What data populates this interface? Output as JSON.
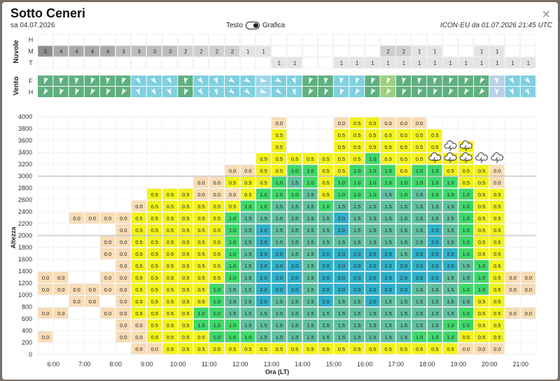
{
  "header": {
    "title": "Sotto Ceneri",
    "date": "sa 04.07.2026",
    "toggle_left": "Testo",
    "toggle_right": "Grafica",
    "model_info": "ICON-EU da 01.07.2026 21:45 UTC",
    "close_icon": "close-icon"
  },
  "clouds": {
    "label": "Nuvole",
    "rows": [
      "H",
      "M",
      "T"
    ],
    "H": [
      "",
      "",
      "",
      "",
      "",
      "",
      "",
      "",
      "",
      "",
      "",
      "",
      "",
      "",
      "",
      "",
      "",
      "",
      "",
      "",
      "",
      "",
      "",
      "",
      "",
      "",
      "",
      "",
      "",
      "",
      "",
      ""
    ],
    "M": [
      "5",
      "4",
      "4",
      "4",
      "4",
      "3",
      "3",
      "3",
      "3",
      "2",
      "2",
      "2",
      "2",
      "1",
      "1",
      "",
      "",
      "",
      "",
      "",
      "",
      "",
      "2",
      "2",
      "1",
      "1",
      "",
      "",
      "1",
      "1",
      "",
      "",
      "1",
      "1"
    ],
    "T": [
      "",
      "",
      "",
      "",
      "",
      "",
      "",
      "",
      "",
      "",
      "",
      "",
      "",
      "",
      "",
      "1",
      "1",
      "",
      "",
      "1",
      "1",
      "1",
      "1",
      "1",
      "1",
      "1",
      "1",
      "1",
      "1",
      "1",
      "1",
      "1",
      "1",
      "1"
    ]
  },
  "wind": {
    "label": "Vento",
    "rows": [
      "F",
      "H"
    ]
  },
  "chart_data": {
    "type": "heatmap",
    "ylabel": "Altezza",
    "xlabel": "Ora (LT)",
    "yticks": [
      0,
      200,
      400,
      600,
      800,
      1000,
      1200,
      1400,
      1600,
      1800,
      2000,
      2200,
      2400,
      2600,
      2800,
      3000,
      3200,
      3400,
      3600,
      3800,
      4000
    ],
    "xticks": [
      "6:00",
      "7:00",
      "8:00",
      "9:00",
      "10:00",
      "11:00",
      "12:00",
      "13:00",
      "14:00",
      "15:00",
      "16:00",
      "17:00",
      "18:00",
      "19:00",
      "20:00",
      "21:00"
    ],
    "columns": [
      {
        "base": 1,
        "values": [
          "0.0",
          "",
          "0.0",
          "",
          "0.0",
          "0.0"
        ]
      },
      {
        "base": 3,
        "values": [
          "0.0",
          "",
          "0.0",
          "0.0"
        ]
      },
      {
        "base": 4,
        "values": [
          "0.0",
          "0.0",
          "",
          "",
          "",
          "",
          "",
          "0.0"
        ]
      },
      {
        "base": 4,
        "values": [
          "0.0",
          "0.0",
          "",
          "",
          "",
          "",
          "",
          "0.0"
        ]
      },
      {
        "base": 3,
        "values": [
          "0.0",
          "",
          "0.0",
          "0.0",
          "",
          "0.0",
          "0.0",
          "",
          "0.0"
        ]
      },
      {
        "base": 1,
        "values": [
          "0.0",
          "0.0",
          "0.0",
          "0.0",
          "0.0",
          "0.0",
          "0.0",
          "0.0",
          "0.0",
          "0.0",
          "0.0"
        ]
      },
      {
        "base": 0,
        "values": [
          "0.0",
          "0.0",
          "0.0",
          "0.5",
          "0.5",
          "0.5",
          "0.5",
          "0.5",
          "0.5",
          "0.5",
          "0.5",
          "0.5",
          "0.0"
        ]
      },
      {
        "base": 0,
        "values": [
          "0.0",
          "0.5",
          "0.5",
          "0.5",
          "0.5",
          "0.5",
          "0.5",
          "0.5",
          "0.5",
          "0.5",
          "0.5",
          "0.5",
          "0.5",
          "0.5"
        ]
      },
      {
        "base": 0,
        "values": [
          "0.5",
          "0.5",
          "0.5",
          "0.5",
          "0.5",
          "0.5",
          "0.5",
          "0.5",
          "0.5",
          "0.5",
          "0.5",
          "0.5",
          "0.5",
          "0.5"
        ]
      },
      {
        "base": 0,
        "values": [
          "0.5",
          "0.5",
          "0.5",
          "0.5",
          "0.5",
          "0.5",
          "0.5",
          "0.5",
          "0.5",
          "0.5",
          "0.5",
          "0.5",
          "0.5",
          "0.5"
        ]
      },
      {
        "base": 0,
        "values": [
          "0.5",
          "0.5",
          "1.0",
          "1.0",
          "0.5",
          "0.5",
          "0.5",
          "0.5",
          "0.5",
          "0.5",
          "0.5",
          "0.5",
          "0.5",
          "0.0",
          "0.0"
        ]
      },
      {
        "base": 0,
        "values": [
          "0.5",
          "1.0",
          "1.0",
          "1.0",
          "1.0",
          "1.0",
          "0.5",
          "0.5",
          "0.5",
          "0.5",
          "0.5",
          "0.5",
          "0.5",
          "0.0",
          "0.0"
        ]
      },
      {
        "base": 0,
        "values": [
          "0.5",
          "1.0",
          "1.0",
          "1.5",
          "1.5",
          "1.5",
          "1.0",
          "1.0",
          "1.0",
          "1.0",
          "1.0",
          "1.0",
          "0.5",
          "0.0",
          "0.5",
          "0.0"
        ]
      },
      {
        "base": 0,
        "values": [
          "0.5",
          "1.0",
          "1.5",
          "1.5",
          "1.5",
          "1.5",
          "1.5",
          "1.5",
          "1.5",
          "1.5",
          "1.5",
          "1.5",
          "1.0",
          "0.5",
          "0.5",
          "0.0"
        ]
      },
      {
        "base": 0,
        "values": [
          "0.5",
          "1.5",
          "1.5",
          "1.5",
          "2.0",
          "2.0",
          "2.0",
          "2.0",
          "2.0",
          "2.0",
          "2.0",
          "1.5",
          "1.0",
          "1.0",
          "0.5",
          "0.5",
          "0.5"
        ]
      },
      {
        "base": 0,
        "values": [
          "0.5",
          "1.5",
          "1.5",
          "1.5",
          "1.5",
          "2.0",
          "2.0",
          "2.0",
          "2.0",
          "1.5",
          "1.5",
          "1.5",
          "1.5",
          "1.0",
          "1.0",
          "0.5",
          "0.5",
          "0.5",
          "0.5",
          "0.0"
        ]
      },
      {
        "base": 0,
        "values": [
          "0.5",
          "1.5",
          "1.5",
          "1.5",
          "1.5",
          "2.0",
          "2.0",
          "2.0",
          "1.5",
          "1.5",
          "1.5",
          "1.5",
          "1.5",
          "1.0",
          "1.5",
          "1.0",
          "0.5"
        ]
      },
      {
        "base": 0,
        "values": [
          "0.5",
          "1.5",
          "1.5",
          "1.5",
          "1.5",
          "1.5",
          "1.5",
          "1.5",
          "1.5",
          "1.5",
          "1.5",
          "1.5",
          "1.5",
          "1.5",
          "1.0",
          "1.0",
          "0.5"
        ]
      },
      {
        "base": 0,
        "values": [
          "0.5",
          "1.5",
          "1.5",
          "1.5",
          "2.0",
          "2.0",
          "2.0",
          "2.0",
          "2.0",
          "1.5",
          "1.5",
          "1.5",
          "1.0",
          "0.5",
          "0.5",
          "0.5",
          "0.5"
        ]
      },
      {
        "base": 0,
        "values": [
          "0.5",
          "1.5",
          "1.5",
          "1.5",
          "1.5",
          "2.0",
          "2.0",
          "2.0",
          "2.0",
          "1.5",
          "2.0",
          "2.0",
          "1.5",
          "1.0",
          "1.0",
          "0.5",
          "0.5",
          "0.5",
          "0.5",
          "0.0"
        ]
      },
      {
        "base": 0,
        "values": [
          "0.5",
          "1.5",
          "1.5",
          "1.5",
          "1.5",
          "2.0",
          "2.0",
          "2.0",
          "2.0",
          "1.5",
          "1.5",
          "1.5",
          "1.5",
          "1.0",
          "1.0",
          "1.0",
          "0.5",
          "0.5",
          "0.5",
          "0.5"
        ]
      },
      {
        "base": 0,
        "values": [
          "0.5",
          "1.5",
          "1.5",
          "1.5",
          "2.0",
          "2.0",
          "2.0",
          "2.0",
          "2.0",
          "1.5",
          "1.5",
          "1.5",
          "1.5",
          "1.0",
          "1.0",
          "1.0",
          "1.0",
          "0.5",
          "0.5",
          "0.5"
        ]
      },
      {
        "base": 0,
        "values": [
          "0.5",
          "1.5",
          "1.5",
          "1.5",
          "1.5",
          "2.0",
          "2.0",
          "2.0",
          "2.0",
          "1.5",
          "1.5",
          "1.5",
          "1.5",
          "1.5",
          "1.0",
          "1.0",
          "0.5",
          "0.5",
          "0.5",
          "0.0"
        ]
      },
      {
        "base": 0,
        "values": [
          "0.5",
          "1.5",
          "1.5",
          "1.5",
          "1.5",
          "2.0",
          "2.0",
          "2.0",
          "1.5",
          "1.5",
          "1.5",
          "1.5",
          "1.5",
          "1.0",
          "1.0",
          "0.5",
          "0.5",
          "0.5",
          "0.5",
          "0.0"
        ]
      },
      {
        "base": 0,
        "values": [
          "0.5",
          "1.0",
          "1.5",
          "1.5",
          "1.5",
          "1.5",
          "2.0",
          "2.0",
          "2.0",
          "1.5",
          "1.5",
          "1.5",
          "1.5",
          "1.5",
          "1.0",
          "1.0",
          "0.5",
          "0.5",
          "0.5",
          "0.0"
        ]
      },
      {
        "base": 0,
        "values": [
          "0.5",
          "1.0",
          "1.5",
          "1.5",
          "1.5",
          "1.5",
          "2.0",
          "2.0",
          "2.0",
          "2.0",
          "2.0",
          "1.5",
          "1.5",
          "1.0",
          "1.0",
          "1.0",
          "0.5",
          "0.5",
          "0.5"
        ]
      },
      {
        "base": 0,
        "values": [
          "0.5",
          "1.0",
          "1.0",
          "1.5",
          "1.5",
          "1.5",
          "1.5",
          "2.0",
          "2.0",
          "1.5",
          "1.5",
          "1.5",
          "1.5",
          "1.0",
          "1.0",
          "0.5",
          "0.5"
        ]
      },
      {
        "base": 0,
        "values": [
          "0.0",
          "0.5",
          "1.0",
          "1.0",
          "1.5",
          "1.0",
          "1.5",
          "1.5",
          "1.0",
          "1.0",
          "1.0",
          "1.0",
          "1.0",
          "1.0",
          "0.5",
          "0.5",
          "0.5",
          "0.5"
        ]
      },
      {
        "base": 0,
        "values": [
          "0.0",
          "0.5",
          "0.5",
          "0.5",
          "0.5",
          "1.0",
          "1.0",
          "1.0",
          "0.5",
          "0.5",
          "0.5",
          "0.5",
          "0.5",
          "0.5",
          "0.5",
          "0.5"
        ]
      },
      {
        "base": 0,
        "values": [
          "0.0",
          "0.5",
          "0.5",
          "0.5",
          "0.5",
          "0.5",
          "0.5",
          "0.5",
          "0.5",
          "0.5",
          "0.5",
          "0.5",
          "0.5",
          "0.5",
          "0.0",
          "0.0"
        ]
      },
      {
        "base": 3,
        "values": [
          "0.0",
          "",
          "0.0",
          "0.0"
        ]
      },
      {
        "base": 3,
        "values": [
          "0.0",
          "",
          "0.0",
          "0.0"
        ]
      },
      {
        "base": 1,
        "values": [
          "0.0",
          "",
          "",
          "",
          "0.0"
        ]
      },
      {
        "base": 3,
        "values": [
          "0.0",
          "",
          "",
          "",
          "",
          "0.0"
        ]
      }
    ],
    "storms": [
      25,
      26,
      27,
      28,
      29
    ],
    "colors": {
      "0.0": "#f8dcb4",
      "0.5": "#f2f21a",
      "1.0": "#3fd86b",
      "1.5": "#5fbf9f",
      "2.0": "#2fb0c9"
    }
  }
}
